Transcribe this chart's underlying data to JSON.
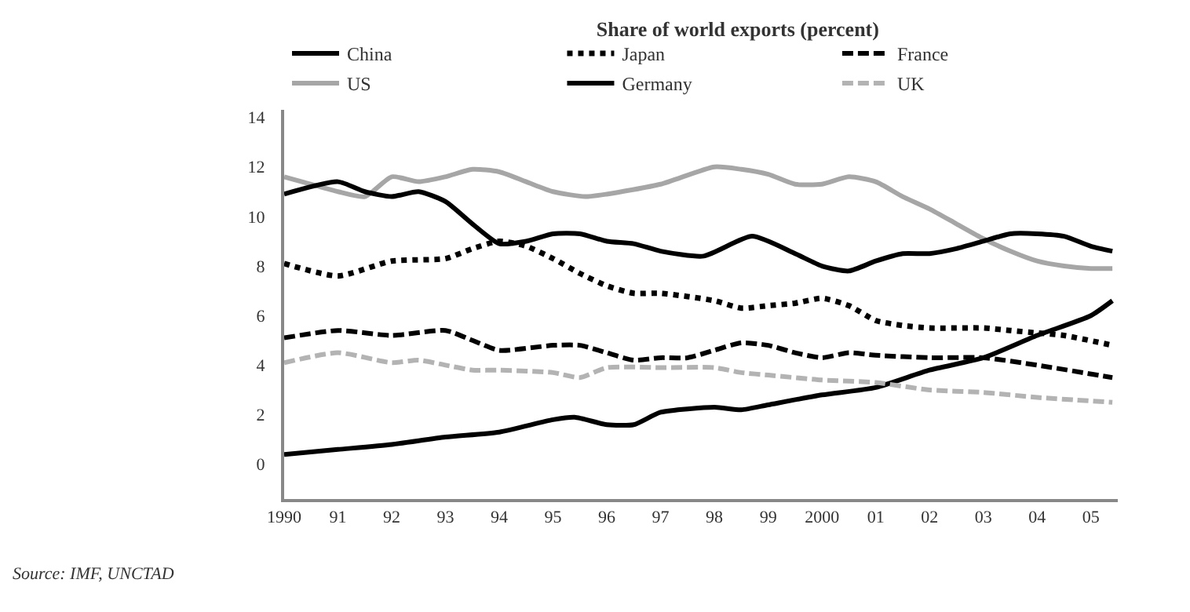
{
  "chart_data": {
    "type": "line",
    "title": "Share of world exports (percent)",
    "annotations": [
      "Source: IMF, UNCTAD"
    ],
    "xlim": [
      1990,
      2005.5
    ],
    "xticks": [
      {
        "value": 1990,
        "label": "1990"
      },
      {
        "value": 1991,
        "label": "91"
      },
      {
        "value": 1992,
        "label": "92"
      },
      {
        "value": 1993,
        "label": "93"
      },
      {
        "value": 1994,
        "label": "94"
      },
      {
        "value": 1995,
        "label": "95"
      },
      {
        "value": 1996,
        "label": "96"
      },
      {
        "value": 1997,
        "label": "97"
      },
      {
        "value": 1998,
        "label": "98"
      },
      {
        "value": 1999,
        "label": "99"
      },
      {
        "value": 2000,
        "label": "2000"
      },
      {
        "value": 2001,
        "label": "01"
      },
      {
        "value": 2002,
        "label": "02"
      },
      {
        "value": 2003,
        "label": "03"
      },
      {
        "value": 2004,
        "label": "04"
      },
      {
        "value": 2005,
        "label": "05"
      }
    ],
    "ylim": [
      -1.4,
      14.3
    ],
    "yticks": [
      0,
      2,
      4,
      6,
      8,
      10,
      12,
      14
    ],
    "grid": false,
    "legend": "top",
    "marker": "none",
    "series": [
      {
        "name": "China",
        "color": "#000000",
        "line_style": "solid",
        "x": [
          1990,
          1991,
          1992,
          1993,
          1994,
          1995,
          1995.4,
          1996,
          1996.5,
          1997,
          1998,
          1998.5,
          1999,
          2000,
          2001,
          2002,
          2003,
          2004,
          2005,
          2005.4
        ],
        "values": [
          0.4,
          0.6,
          0.8,
          1.1,
          1.3,
          1.8,
          1.9,
          1.6,
          1.6,
          2.1,
          2.3,
          2.2,
          2.4,
          2.8,
          3.1,
          3.8,
          4.3,
          5.2,
          6.0,
          6.6
        ]
      },
      {
        "name": "Japan",
        "color": "#000000",
        "line_style": "dotted",
        "x": [
          1990,
          1991,
          1992,
          1993,
          1993.5,
          1994,
          1994.5,
          1995,
          1995.5,
          1996,
          1996.5,
          1997,
          1998,
          1998.5,
          1999,
          1999.5,
          2000,
          2000.5,
          2001,
          2001.5,
          2002,
          2003,
          2003.5,
          2004,
          2004.5,
          2005.4
        ],
        "values": [
          8.1,
          7.6,
          8.2,
          8.3,
          8.7,
          9.0,
          8.8,
          8.3,
          7.7,
          7.2,
          6.9,
          6.9,
          6.6,
          6.3,
          6.4,
          6.5,
          6.7,
          6.4,
          5.8,
          5.6,
          5.5,
          5.5,
          5.4,
          5.3,
          5.2,
          4.8
        ]
      },
      {
        "name": "France",
        "color": "#000000",
        "line_style": "dashed",
        "x": [
          1990,
          1991,
          1992,
          1993,
          1993.5,
          1994,
          1995,
          1995.5,
          1996,
          1996.5,
          1997,
          1997.5,
          1998,
          1998.5,
          1999,
          1999.5,
          2000,
          2000.5,
          2001,
          2002,
          2003,
          2004,
          2005.4
        ],
        "values": [
          5.1,
          5.4,
          5.2,
          5.4,
          5.0,
          4.6,
          4.8,
          4.8,
          4.5,
          4.2,
          4.3,
          4.3,
          4.6,
          4.9,
          4.8,
          4.5,
          4.3,
          4.5,
          4.4,
          4.3,
          4.3,
          4.0,
          3.5
        ]
      },
      {
        "name": "US",
        "color": "#a6a6a6",
        "line_style": "solid",
        "x": [
          1990,
          1990.5,
          1991,
          1991.5,
          1992,
          1992.5,
          1993,
          1993.5,
          1994,
          1994.5,
          1995,
          1995.6,
          1996,
          1997,
          1998,
          1998.5,
          1999,
          1999.5,
          2000,
          2000.5,
          2001,
          2001.5,
          2002,
          2002.5,
          2003,
          2003.5,
          2004,
          2004.5,
          2005,
          2005.4
        ],
        "values": [
          11.6,
          11.3,
          11.0,
          10.8,
          11.6,
          11.4,
          11.6,
          11.9,
          11.8,
          11.4,
          11.0,
          10.8,
          10.9,
          11.3,
          12.0,
          11.9,
          11.7,
          11.3,
          11.3,
          11.6,
          11.4,
          10.8,
          10.3,
          9.7,
          9.1,
          8.6,
          8.2,
          8.0,
          7.9,
          7.9
        ]
      },
      {
        "name": "Germany",
        "color": "#000000",
        "line_style": "solid",
        "x": [
          1990,
          1991,
          1991.5,
          1992,
          1992.5,
          1993,
          1993.5,
          1994,
          1994.5,
          1995,
          1995.5,
          1996,
          1996.5,
          1997,
          1997.8,
          1998.7,
          1999.5,
          2000,
          2000.5,
          2001,
          2001.5,
          2002,
          2002.5,
          2003,
          2003.5,
          2004,
          2004.5,
          2005,
          2005.4
        ],
        "values": [
          10.9,
          11.4,
          11.0,
          10.8,
          11.0,
          10.6,
          9.7,
          8.9,
          9.0,
          9.3,
          9.3,
          9.0,
          8.9,
          8.6,
          8.4,
          9.2,
          8.5,
          8.0,
          7.8,
          8.2,
          8.5,
          8.5,
          8.7,
          9.0,
          9.3,
          9.3,
          9.2,
          8.8,
          8.6
        ]
      },
      {
        "name": "UK",
        "color": "#b3b3b3",
        "line_style": "dashed",
        "x": [
          1990,
          1991,
          1992,
          1992.5,
          1993,
          1993.5,
          1994,
          1995,
          1995.5,
          1996,
          1997,
          1998,
          1998.5,
          1999,
          2000,
          2001,
          2002,
          2003,
          2004,
          2005.4
        ],
        "values": [
          4.1,
          4.5,
          4.1,
          4.2,
          4.0,
          3.8,
          3.8,
          3.7,
          3.5,
          3.9,
          3.9,
          3.9,
          3.7,
          3.6,
          3.4,
          3.3,
          3.0,
          2.9,
          2.7,
          2.5
        ]
      }
    ]
  }
}
